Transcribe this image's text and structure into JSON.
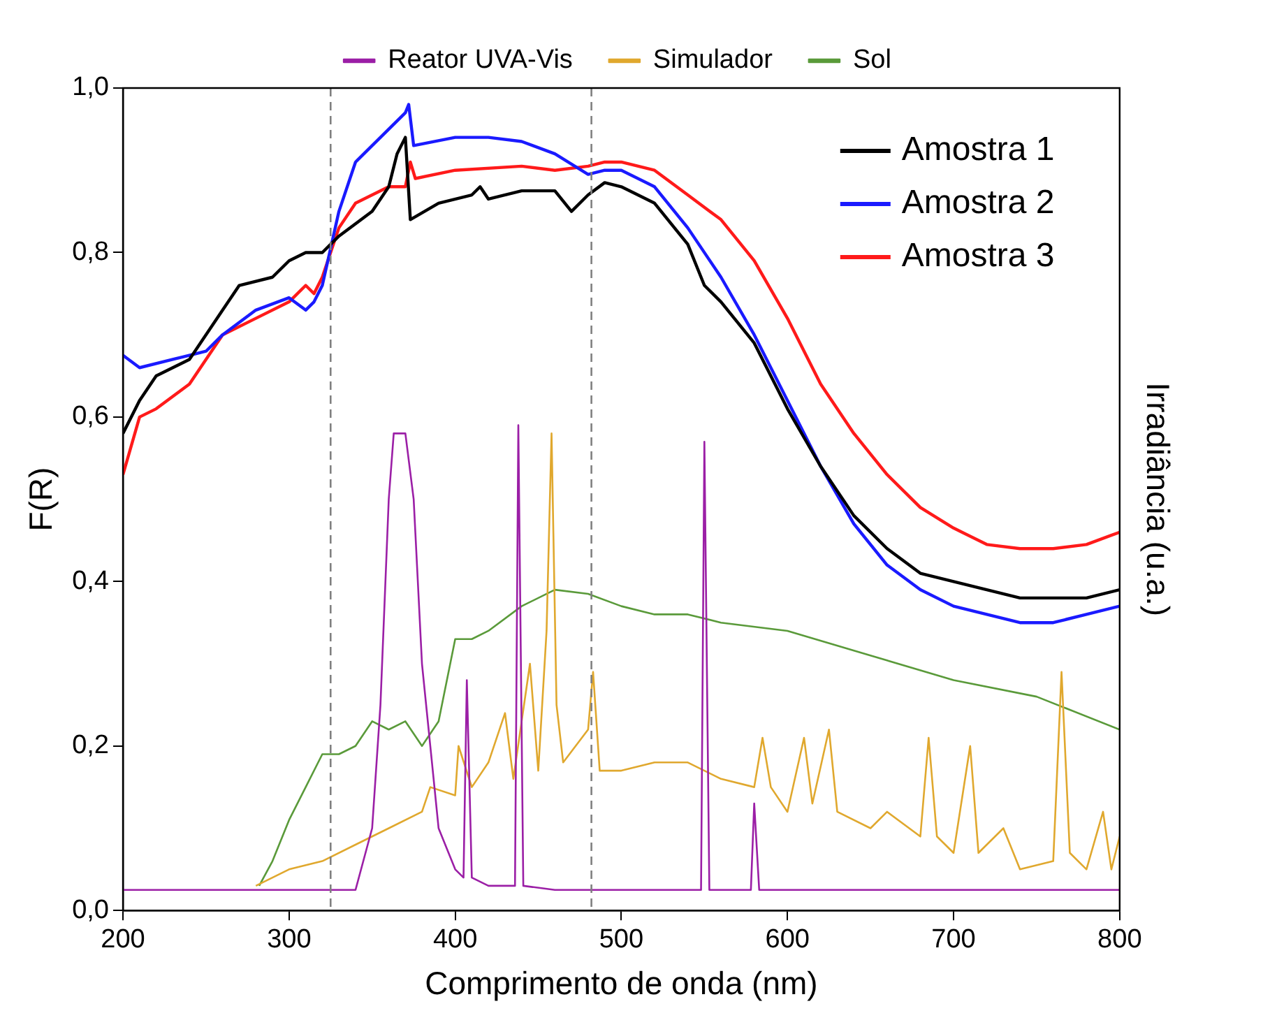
{
  "chart_data": {
    "type": "line",
    "xlabel": "Comprimento de onda (nm)",
    "ylabel": "F(R)",
    "y2label": "Irradiância (u.a.)",
    "xlim": [
      200,
      800
    ],
    "xticks": [
      200,
      300,
      400,
      500,
      600,
      700,
      800
    ],
    "ylim": [
      0,
      1
    ],
    "yticks": [
      {
        "value": 0,
        "label": "0,0"
      },
      {
        "value": 0.2,
        "label": "0,2"
      },
      {
        "value": 0.4,
        "label": "0,4"
      },
      {
        "value": 0.6,
        "label": "0,6"
      },
      {
        "value": 0.8,
        "label": "0,8"
      },
      {
        "value": 1,
        "label": "1,0"
      }
    ],
    "grid": false,
    "legend": "top",
    "marker": "none",
    "line_style": "solid",
    "ref_lines": [
      {
        "axis": "x",
        "value": 325,
        "color": "#808080",
        "line_style": "dashed"
      },
      {
        "axis": "x",
        "value": 482,
        "color": "#808080",
        "line_style": "dashed"
      }
    ],
    "series": [
      {
        "name": "Reator UVA-Vis",
        "color": "#9b1fa6",
        "x": [
          200,
          340,
          350,
          355,
          360,
          363,
          370,
          375,
          380,
          390,
          400,
          405,
          407,
          410,
          420,
          436,
          438,
          441,
          460,
          548,
          550,
          553,
          578,
          580,
          583,
          800
        ],
        "values": [
          0.025,
          0.025,
          0.1,
          0.25,
          0.5,
          0.58,
          0.58,
          0.5,
          0.3,
          0.1,
          0.05,
          0.04,
          0.28,
          0.04,
          0.03,
          0.03,
          0.59,
          0.03,
          0.025,
          0.025,
          0.57,
          0.025,
          0.025,
          0.13,
          0.025,
          0.025
        ]
      },
      {
        "name": "Simulador",
        "color": "#e0a82e",
        "x": [
          280,
          300,
          320,
          340,
          360,
          380,
          385,
          400,
          402,
          410,
          420,
          430,
          435,
          445,
          450,
          455,
          458,
          461,
          465,
          480,
          483,
          487,
          500,
          520,
          540,
          560,
          580,
          585,
          590,
          600,
          610,
          615,
          625,
          630,
          650,
          660,
          680,
          685,
          690,
          700,
          710,
          715,
          730,
          740,
          760,
          765,
          770,
          780,
          790,
          795,
          800
        ],
        "values": [
          0.03,
          0.05,
          0.06,
          0.08,
          0.1,
          0.12,
          0.15,
          0.14,
          0.2,
          0.15,
          0.18,
          0.24,
          0.16,
          0.3,
          0.17,
          0.34,
          0.58,
          0.25,
          0.18,
          0.22,
          0.29,
          0.17,
          0.17,
          0.18,
          0.18,
          0.16,
          0.15,
          0.21,
          0.15,
          0.12,
          0.21,
          0.13,
          0.22,
          0.12,
          0.1,
          0.12,
          0.09,
          0.21,
          0.09,
          0.07,
          0.2,
          0.07,
          0.1,
          0.05,
          0.06,
          0.29,
          0.07,
          0.05,
          0.12,
          0.05,
          0.09
        ]
      },
      {
        "name": "Sol",
        "color": "#5a9a3a",
        "x": [
          282,
          290,
          300,
          310,
          320,
          330,
          340,
          350,
          360,
          370,
          380,
          390,
          400,
          410,
          420,
          440,
          460,
          480,
          500,
          520,
          540,
          560,
          600,
          650,
          700,
          750,
          800
        ],
        "values": [
          0.03,
          0.06,
          0.11,
          0.15,
          0.19,
          0.19,
          0.2,
          0.23,
          0.22,
          0.23,
          0.2,
          0.23,
          0.33,
          0.33,
          0.34,
          0.37,
          0.39,
          0.385,
          0.37,
          0.36,
          0.36,
          0.35,
          0.34,
          0.31,
          0.28,
          0.26,
          0.22
        ]
      },
      {
        "name": "Amostra 1",
        "color": "#000000",
        "x": [
          200,
          210,
          220,
          240,
          260,
          270,
          290,
          300,
          310,
          320,
          330,
          350,
          360,
          365,
          370,
          373,
          390,
          410,
          415,
          420,
          440,
          460,
          470,
          480,
          490,
          500,
          520,
          540,
          550,
          560,
          580,
          600,
          620,
          640,
          660,
          680,
          700,
          720,
          740,
          760,
          780,
          800
        ],
        "values": [
          0.58,
          0.62,
          0.65,
          0.67,
          0.73,
          0.76,
          0.77,
          0.79,
          0.8,
          0.8,
          0.82,
          0.85,
          0.88,
          0.92,
          0.94,
          0.84,
          0.86,
          0.87,
          0.88,
          0.865,
          0.875,
          0.875,
          0.85,
          0.87,
          0.885,
          0.88,
          0.86,
          0.81,
          0.76,
          0.74,
          0.69,
          0.61,
          0.54,
          0.48,
          0.44,
          0.41,
          0.4,
          0.39,
          0.38,
          0.38,
          0.38,
          0.39
        ]
      },
      {
        "name": "Amostra 2",
        "color": "#1a1aff",
        "x": [
          200,
          210,
          230,
          250,
          260,
          280,
          300,
          310,
          315,
          320,
          330,
          340,
          360,
          370,
          372,
          375,
          400,
          420,
          440,
          460,
          480,
          490,
          500,
          520,
          540,
          560,
          580,
          600,
          620,
          640,
          660,
          680,
          700,
          720,
          740,
          760,
          780,
          800
        ],
        "values": [
          0.675,
          0.66,
          0.67,
          0.68,
          0.7,
          0.73,
          0.745,
          0.73,
          0.74,
          0.76,
          0.85,
          0.91,
          0.95,
          0.97,
          0.98,
          0.93,
          0.94,
          0.94,
          0.935,
          0.92,
          0.895,
          0.9,
          0.9,
          0.88,
          0.83,
          0.77,
          0.7,
          0.62,
          0.54,
          0.47,
          0.42,
          0.39,
          0.37,
          0.36,
          0.35,
          0.35,
          0.36,
          0.37
        ]
      },
      {
        "name": "Amostra 3",
        "color": "#ff1a1a",
        "x": [
          200,
          210,
          220,
          240,
          260,
          280,
          300,
          310,
          315,
          320,
          330,
          340,
          360,
          370,
          373,
          376,
          400,
          440,
          460,
          480,
          490,
          500,
          520,
          540,
          560,
          580,
          600,
          620,
          640,
          660,
          680,
          700,
          720,
          740,
          760,
          780,
          800
        ],
        "values": [
          0.53,
          0.6,
          0.61,
          0.64,
          0.7,
          0.72,
          0.74,
          0.76,
          0.75,
          0.77,
          0.83,
          0.86,
          0.88,
          0.88,
          0.91,
          0.89,
          0.9,
          0.905,
          0.9,
          0.905,
          0.91,
          0.91,
          0.9,
          0.87,
          0.84,
          0.79,
          0.72,
          0.64,
          0.58,
          0.53,
          0.49,
          0.465,
          0.445,
          0.44,
          0.44,
          0.445,
          0.46
        ]
      }
    ]
  }
}
